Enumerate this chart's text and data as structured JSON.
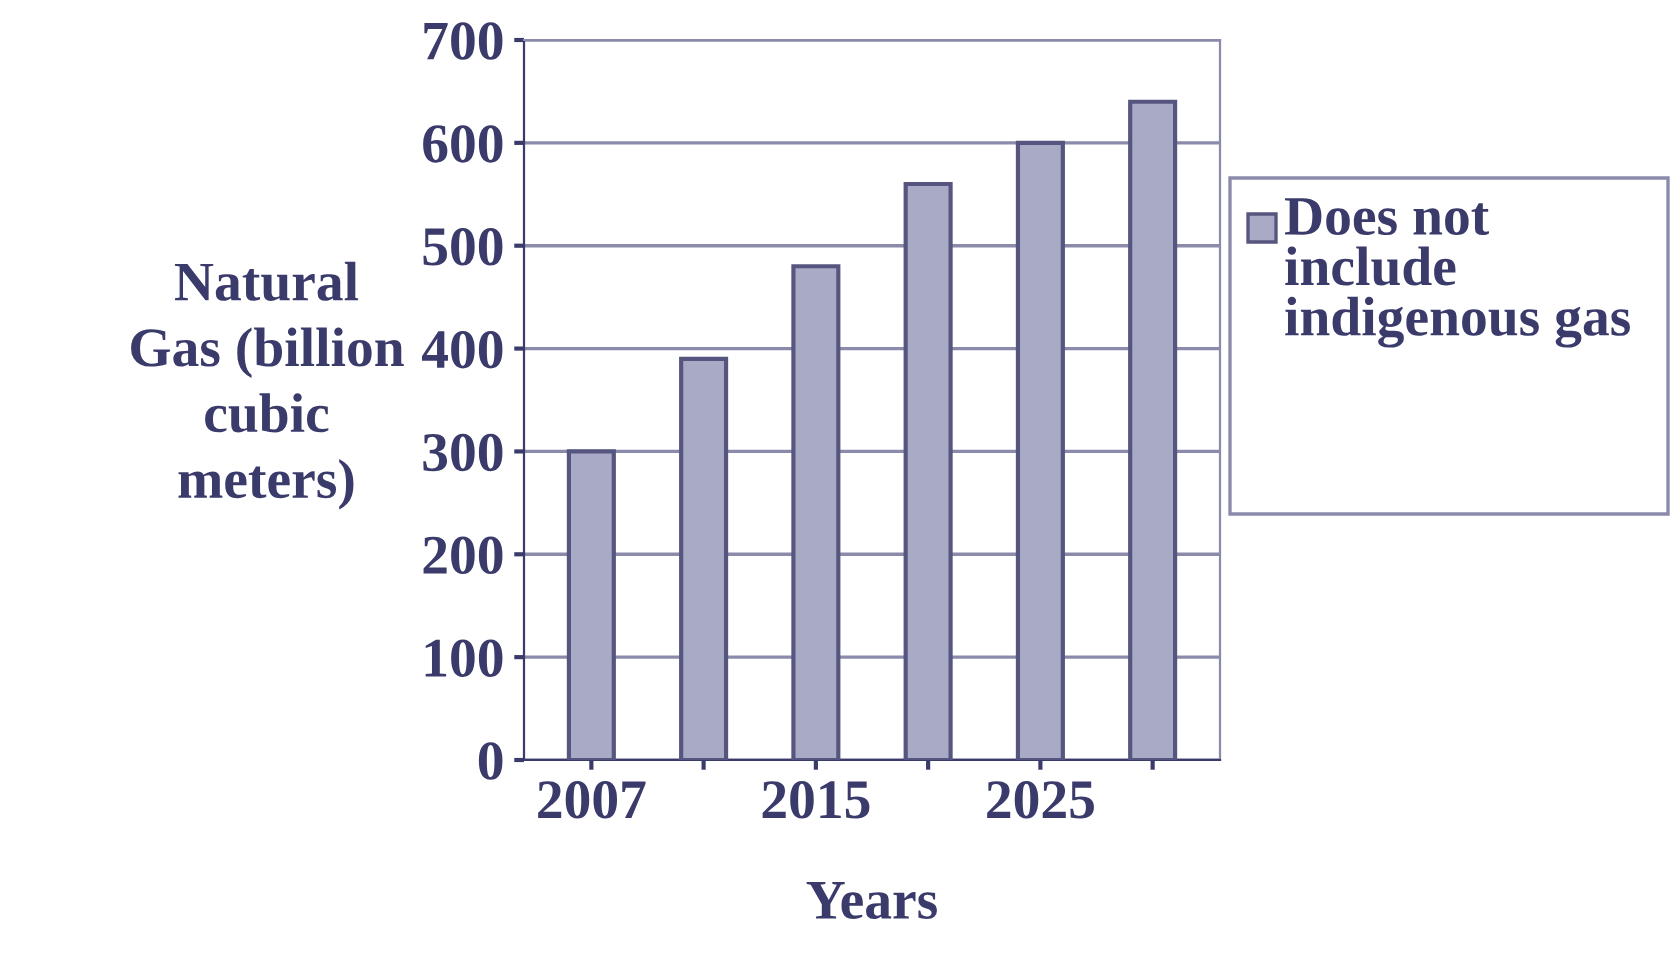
{
  "chart_data": {
    "type": "bar",
    "xlabel": "Years",
    "ylabel": "Natural\nGas (billion\ncubic\nmeters)",
    "categories": [
      "2007",
      null,
      "2015",
      null,
      "2025",
      null
    ],
    "series": [
      {
        "name": "Does not include indigenous gas",
        "color": "#a9abc6",
        "values": [
          300,
          390,
          480,
          560,
          600,
          640
        ]
      }
    ],
    "ylim": [
      0,
      700
    ],
    "yticks": [
      0,
      100,
      200,
      300,
      400,
      500,
      600,
      700
    ],
    "grid": "y",
    "legend": "right"
  }
}
